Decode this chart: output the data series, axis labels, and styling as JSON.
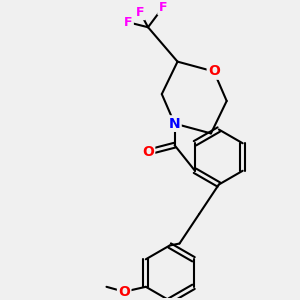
{
  "background_color": "#f0f0f0",
  "bond_color": "#000000",
  "atom_colors": {
    "O": "#ff0000",
    "N": "#0000ff",
    "F": "#ff00ff",
    "C": "#000000"
  },
  "figsize": [
    3.0,
    3.0
  ],
  "dpi": 100
}
